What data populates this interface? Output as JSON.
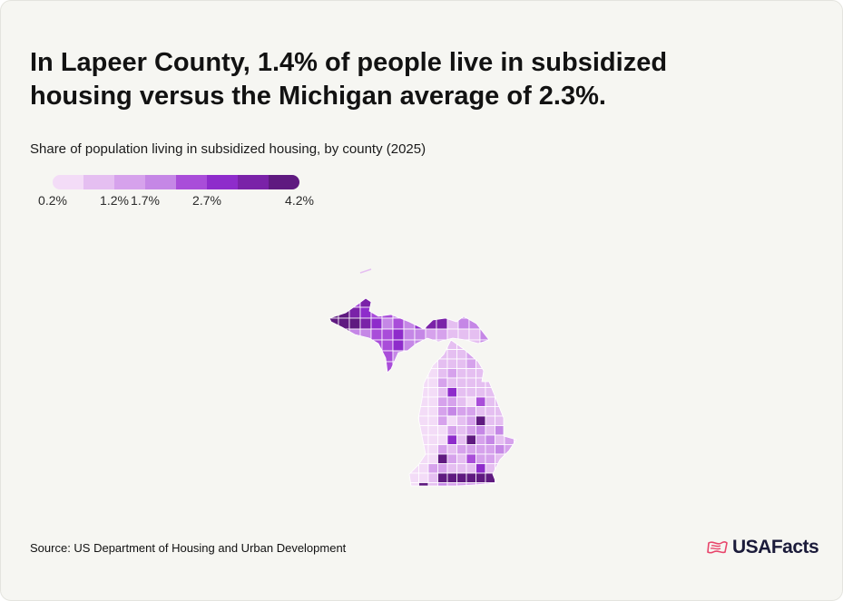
{
  "headline": "In Lapeer County, 1.4% of people live in subsidized housing versus the Michigan average of 2.3%.",
  "subtitle": "Share of population living in subsidized housing, by county (2025)",
  "legend": {
    "colors": [
      "#f3dcf7",
      "#e5bff1",
      "#d6a2ec",
      "#c587e6",
      "#a94dd9",
      "#8e2ccb",
      "#7a22a8",
      "#5f1a80"
    ],
    "labels": [
      "0.2%",
      "1.2%",
      "1.7%",
      "2.7%",
      "4.2%"
    ]
  },
  "source": "Source: US Department of Housing and Urban Development",
  "brand": {
    "name": "USAFacts",
    "icon": "usafacts-flag-icon",
    "icon_color": "#e8456b"
  },
  "map": {
    "region": "Michigan",
    "highlight_county": "Lapeer County",
    "highlight_value": "1.4%",
    "state_average": "2.3%"
  }
}
